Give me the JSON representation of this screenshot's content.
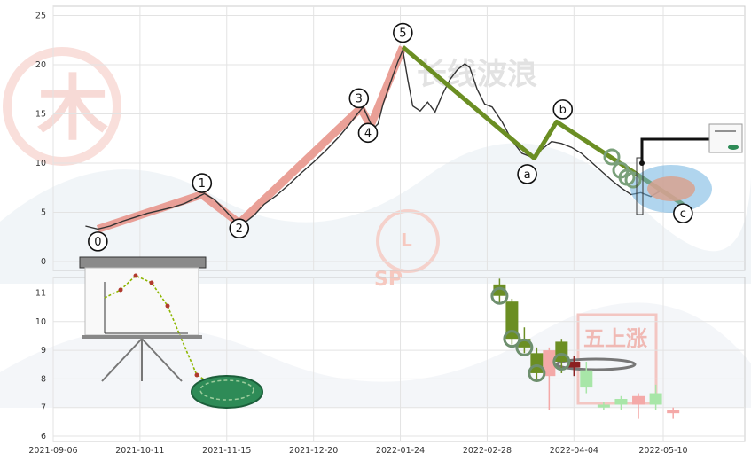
{
  "chart_data": [
    {
      "type": "line",
      "panel": "top",
      "x_ticks": [
        "2021-09-06",
        "2021-10-11",
        "2021-11-15",
        "2021-12-20",
        "2022-01-24",
        "2022-02-28",
        "2022-04-04",
        "2022-05-10"
      ],
      "y_ticks": [
        0,
        5,
        10,
        15,
        20,
        25
      ],
      "ylim": [
        -1,
        26
      ],
      "grid": true,
      "watermark_text": "长线波浪",
      "price_line": [
        [
          "2021-09-19",
          3.6
        ],
        [
          "2021-09-24",
          3.3
        ],
        [
          "2021-09-29",
          3.6
        ],
        [
          "2021-10-04",
          4.1
        ],
        [
          "2021-10-09",
          4.5
        ],
        [
          "2021-10-14",
          4.9
        ],
        [
          "2021-10-19",
          5.2
        ],
        [
          "2021-10-24",
          5.5
        ],
        [
          "2021-10-29",
          5.9
        ],
        [
          "2021-11-02",
          6.4
        ],
        [
          "2021-11-06",
          6.9
        ],
        [
          "2021-11-10",
          6.3
        ],
        [
          "2021-11-14",
          5.3
        ],
        [
          "2021-11-18",
          4.2
        ],
        [
          "2021-11-22",
          3.9
        ],
        [
          "2021-11-26",
          4.7
        ],
        [
          "2021-11-30",
          5.8
        ],
        [
          "2021-12-05",
          6.7
        ],
        [
          "2021-12-10",
          7.8
        ],
        [
          "2021-12-15",
          9.0
        ],
        [
          "2021-12-20",
          10.1
        ],
        [
          "2021-12-25",
          11.3
        ],
        [
          "2021-12-30",
          12.6
        ],
        [
          "2022-01-03",
          13.8
        ],
        [
          "2022-01-07",
          15.1
        ],
        [
          "2022-01-09",
          15.7
        ],
        [
          "2022-01-11",
          14.6
        ],
        [
          "2022-01-13",
          13.5
        ],
        [
          "2022-01-15",
          14.0
        ],
        [
          "2022-01-17",
          16.0
        ],
        [
          "2022-01-20",
          18.2
        ],
        [
          "2022-01-23",
          20.3
        ],
        [
          "2022-01-25",
          21.5
        ],
        [
          "2022-01-27",
          18.5
        ],
        [
          "2022-01-29",
          15.8
        ],
        [
          "2022-02-01",
          15.3
        ],
        [
          "2022-02-04",
          16.2
        ],
        [
          "2022-02-07",
          15.2
        ],
        [
          "2022-02-10",
          17.0
        ],
        [
          "2022-02-13",
          18.5
        ],
        [
          "2022-02-16",
          19.5
        ],
        [
          "2022-02-19",
          20.1
        ],
        [
          "2022-02-21",
          19.7
        ],
        [
          "2022-02-24",
          17.5
        ],
        [
          "2022-02-27",
          16.0
        ],
        [
          "2022-03-02",
          15.7
        ],
        [
          "2022-03-06",
          14.2
        ],
        [
          "2022-03-10",
          12.3
        ],
        [
          "2022-03-14",
          11.0
        ],
        [
          "2022-03-18",
          10.6
        ],
        [
          "2022-03-22",
          11.4
        ],
        [
          "2022-03-26",
          12.2
        ],
        [
          "2022-03-30",
          12.0
        ],
        [
          "2022-04-03",
          11.6
        ],
        [
          "2022-04-07",
          11.0
        ],
        [
          "2022-04-11",
          10.1
        ],
        [
          "2022-04-15",
          9.2
        ],
        [
          "2022-04-19",
          8.3
        ],
        [
          "2022-04-23",
          7.5
        ],
        [
          "2022-04-27",
          6.8
        ],
        [
          "2022-05-01",
          7.0
        ],
        [
          "2022-05-05",
          6.6
        ],
        [
          "2022-05-09",
          7.2
        ],
        [
          "2022-05-13",
          6.7
        ],
        [
          "2022-05-16",
          6.2
        ]
      ],
      "impulse_waves": [
        {
          "label": "0",
          "date": "2021-09-24",
          "value": 3.3
        },
        {
          "label": "1",
          "date": "2021-11-05",
          "value": 6.8
        },
        {
          "label": "2",
          "date": "2021-11-20",
          "value": 3.9
        },
        {
          "label": "3",
          "date": "2022-01-08",
          "value": 15.6
        },
        {
          "label": "4",
          "date": "2022-01-12",
          "value": 13.8
        },
        {
          "label": "5",
          "date": "2022-01-25",
          "value": 21.8
        }
      ],
      "corrective_waves": [
        {
          "label": "5",
          "date": "2022-01-25",
          "value": 21.8
        },
        {
          "label": "a",
          "date": "2022-03-19",
          "value": 10.5
        },
        {
          "label": "b",
          "date": "2022-03-28",
          "value": 14.2
        },
        {
          "label": "c",
          "date": "2022-05-18",
          "value": 5.8
        }
      ]
    },
    {
      "type": "candlestick",
      "panel": "bottom",
      "y_ticks": [
        6,
        7,
        8,
        9,
        10,
        11
      ],
      "ylim": [
        5.9,
        11.6
      ],
      "grid": true,
      "candles": [
        {
          "date": "2022-03-05",
          "open": 10.9,
          "close": 11.3,
          "high": 11.5,
          "low": 10.6,
          "color": "green"
        },
        {
          "date": "2022-03-10",
          "open": 10.7,
          "close": 9.4,
          "high": 10.8,
          "low": 9.2,
          "color": "green"
        },
        {
          "date": "2022-03-15",
          "open": 9.4,
          "close": 9.1,
          "high": 9.8,
          "low": 8.9,
          "color": "green"
        },
        {
          "date": "2022-03-20",
          "open": 8.9,
          "close": 8.2,
          "high": 9.1,
          "low": 7.9,
          "color": "green"
        },
        {
          "date": "2022-03-25",
          "open": 8.1,
          "close": 9.0,
          "high": 9.1,
          "low": 6.9,
          "color": "pink"
        },
        {
          "date": "2022-03-30",
          "open": 9.3,
          "close": 8.6,
          "high": 9.4,
          "low": 8.2,
          "color": "green"
        },
        {
          "date": "2022-04-04",
          "open": 8.6,
          "close": 8.4,
          "high": 8.8,
          "low": 8.1,
          "color": "maroon"
        },
        {
          "date": "2022-04-09",
          "open": 8.3,
          "close": 7.7,
          "high": 8.6,
          "low": 7.5,
          "color": "lightgreen"
        },
        {
          "date": "2022-04-16",
          "open": 7.1,
          "close": 7.0,
          "high": 7.2,
          "low": 6.9,
          "color": "lightgreen"
        },
        {
          "date": "2022-04-23",
          "open": 7.3,
          "close": 7.1,
          "high": 7.4,
          "low": 6.9,
          "color": "lightgreen"
        },
        {
          "date": "2022-04-30",
          "open": 7.1,
          "close": 7.4,
          "high": 7.5,
          "low": 6.6,
          "color": "pink"
        },
        {
          "date": "2022-05-07",
          "open": 7.5,
          "close": 7.1,
          "high": 7.8,
          "low": 6.9,
          "color": "lightgreen"
        },
        {
          "date": "2022-05-14",
          "open": 6.9,
          "close": 6.8,
          "high": 7.0,
          "low": 6.6,
          "color": "pink"
        }
      ],
      "marker_circles": [
        "2022-03-05",
        "2022-03-10",
        "2022-03-15",
        "2022-03-20",
        "2022-03-30"
      ]
    }
  ],
  "logo_badges": {
    "center_badge_letter": "L",
    "center_badge_text": "SP",
    "right_stamp_text": "五上涨"
  },
  "colors": {
    "impulse": "#e8968c",
    "corrective": "#6b8e23",
    "price": "#333333",
    "candle_green": "#6b8e23",
    "candle_pink": "#f4a9a8",
    "candle_maroon": "#8b2020",
    "candle_lightgreen": "#a8e6a8",
    "highlight": "#6fb2e0"
  }
}
